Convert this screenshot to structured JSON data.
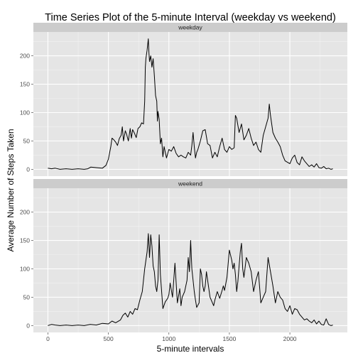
{
  "chart_data": {
    "type": "line",
    "title": "Time Series Plot of the 5-minute Interval (weekday vs weekend)",
    "xlabel": "5-minute intervals",
    "ylabel": "Average Number of Steps Taken",
    "xlim": [
      -120,
      2475
    ],
    "ylim": [
      -12,
      242
    ],
    "x_ticks": [
      0,
      500,
      1000,
      1500,
      2000
    ],
    "y_ticks": [
      0,
      50,
      100,
      150,
      200
    ],
    "grid": true,
    "panels": [
      {
        "strip": "weekday",
        "series": [
          {
            "x": [
              0,
              30,
              60,
              100,
              150,
              200,
              250,
              300,
              330,
              355,
              400,
              450,
              480,
              500,
              520,
              530,
              545,
              560,
              575,
              590,
              605,
              615,
              625,
              640,
              650,
              665,
              680,
              690,
              700,
              715,
              730,
              745,
              760,
              775,
              790,
              800,
              805,
              810,
              820,
              830,
              835,
              840,
              850,
              860,
              870,
              880,
              890,
              900,
              905,
              910,
              920,
              930,
              940,
              950,
              960,
              970,
              980,
              1000,
              1020,
              1040,
              1060,
              1080,
              1100,
              1120,
              1140,
              1160,
              1180,
              1190,
              1200,
              1210,
              1220,
              1230,
              1240,
              1260,
              1280,
              1300,
              1320,
              1340,
              1360,
              1380,
              1400,
              1420,
              1440,
              1460,
              1480,
              1500,
              1520,
              1540,
              1550,
              1560,
              1580,
              1600,
              1620,
              1640,
              1660,
              1680,
              1700,
              1720,
              1740,
              1760,
              1780,
              1800,
              1820,
              1830,
              1840,
              1850,
              1860,
              1880,
              1900,
              1920,
              1940,
              1960,
              2000,
              2020,
              2040,
              2060,
              2080,
              2100,
              2120,
              2140,
              2160,
              2180,
              2200,
              2220,
              2240,
              2260,
              2280,
              2300,
              2320,
              2340,
              2355
            ],
            "y": [
              2,
              1,
              2,
              0,
              1,
              0,
              1,
              0,
              1,
              4,
              3,
              2,
              7,
              18,
              40,
              55,
              52,
              48,
              42,
              54,
              60,
              75,
              50,
              68,
              62,
              50,
              72,
              55,
              70,
              64,
              56,
              72,
              75,
              82,
              80,
              120,
              180,
              195,
              210,
              230,
              205,
              190,
              200,
              180,
              195,
              165,
              130,
              120,
              85,
              102,
              88,
              45,
              55,
              22,
              40,
              30,
              20,
              35,
              32,
              40,
              28,
              22,
              25,
              22,
              20,
              30,
              25,
              42,
              65,
              40,
              20,
              30,
              35,
              50,
              68,
              70,
              45,
              42,
              20,
              30,
              22,
              40,
              55,
              35,
              30,
              40,
              35,
              38,
              95,
              90,
              65,
              80,
              52,
              60,
              72,
              55,
              42,
              48,
              35,
              30,
              60,
              75,
              90,
              115,
              95,
              80,
              65,
              55,
              48,
              40,
              25,
              15,
              10,
              20,
              25,
              12,
              8,
              22,
              15,
              10,
              5,
              8,
              4,
              10,
              3,
              2,
              5,
              1,
              2,
              0,
              1
            ]
          }
        ]
      },
      {
        "strip": "weekend",
        "series": [
          {
            "x": [
              0,
              30,
              60,
              100,
              150,
              200,
              250,
              300,
              350,
              400,
              450,
              500,
              530,
              560,
              600,
              620,
              640,
              660,
              680,
              700,
              720,
              740,
              760,
              780,
              800,
              820,
              830,
              840,
              850,
              860,
              870,
              880,
              890,
              900,
              910,
              920,
              930,
              950,
              970,
              990,
              1000,
              1010,
              1030,
              1050,
              1070,
              1090,
              1100,
              1110,
              1130,
              1150,
              1160,
              1170,
              1180,
              1190,
              1200,
              1210,
              1220,
              1230,
              1250,
              1260,
              1270,
              1280,
              1290,
              1300,
              1310,
              1320,
              1340,
              1360,
              1370,
              1380,
              1400,
              1420,
              1440,
              1450,
              1460,
              1480,
              1500,
              1520,
              1530,
              1540,
              1550,
              1560,
              1570,
              1580,
              1590,
              1600,
              1610,
              1620,
              1640,
              1660,
              1680,
              1700,
              1720,
              1740,
              1760,
              1780,
              1800,
              1820,
              1840,
              1860,
              1880,
              1900,
              1920,
              1940,
              1960,
              1980,
              2000,
              2020,
              2040,
              2060,
              2080,
              2100,
              2120,
              2140,
              2160,
              2180,
              2200,
              2220,
              2240,
              2260,
              2280,
              2300,
              2320,
              2340,
              2355
            ],
            "y": [
              0,
              2,
              1,
              0,
              1,
              0,
              1,
              0,
              2,
              1,
              4,
              3,
              8,
              5,
              10,
              18,
              22,
              15,
              25,
              20,
              30,
              28,
              45,
              60,
              100,
              130,
              162,
              120,
              160,
              140,
              105,
              95,
              70,
              60,
              80,
              160,
              90,
              30,
              42,
              48,
              55,
              75,
              50,
              110,
              40,
              65,
              35,
              50,
              60,
              80,
              120,
              95,
              150,
              100,
              80,
              60,
              45,
              32,
              40,
              100,
              90,
              70,
              60,
              70,
              95,
              80,
              50,
              40,
              35,
              45,
              60,
              48,
              62,
              70,
              62,
              85,
              133,
              115,
              100,
              110,
              90,
              60,
              78,
              105,
              130,
              145,
              100,
              85,
              120,
              110,
              95,
              60,
              80,
              95,
              40,
              50,
              60,
              120,
              95,
              70,
              40,
              60,
              50,
              45,
              30,
              25,
              35,
              20,
              30,
              28,
              20,
              15,
              10,
              12,
              8,
              5,
              10,
              3,
              8,
              2,
              1,
              12,
              2,
              0,
              1
            ]
          }
        ]
      }
    ]
  }
}
